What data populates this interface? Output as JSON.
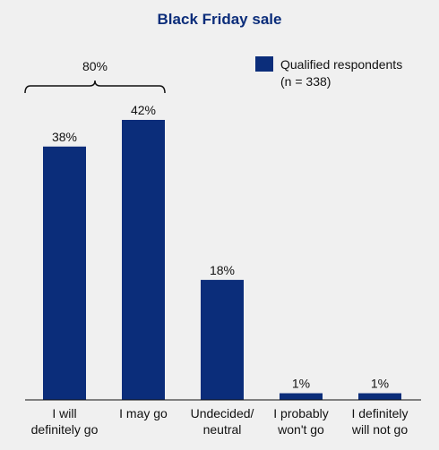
{
  "chart_data": {
    "type": "bar",
    "title": "Black Friday sale",
    "categories": [
      [
        "I will",
        "definitely go"
      ],
      [
        "I may go"
      ],
      [
        "Undecided/",
        "neutral"
      ],
      [
        "I probably",
        "won't go"
      ],
      [
        "I definitely",
        "will not go"
      ]
    ],
    "series": [
      {
        "name": "Qualified respondents (n = 338)",
        "values": [
          38,
          42,
          18,
          1,
          1
        ],
        "labels": [
          "38%",
          "42%",
          "18%",
          "1%",
          "1%"
        ]
      }
    ],
    "legend": {
      "line1": "Qualified respondents",
      "line2": "(n = 338)",
      "position": "top-right"
    },
    "bracket": {
      "label": "80%",
      "spans_categories": [
        0,
        1
      ]
    },
    "ylim": [
      0,
      42
    ],
    "grid": false
  },
  "colors": {
    "bar": "#0b2d7a",
    "title": "#0b2d7a",
    "axis": "#111111"
  }
}
